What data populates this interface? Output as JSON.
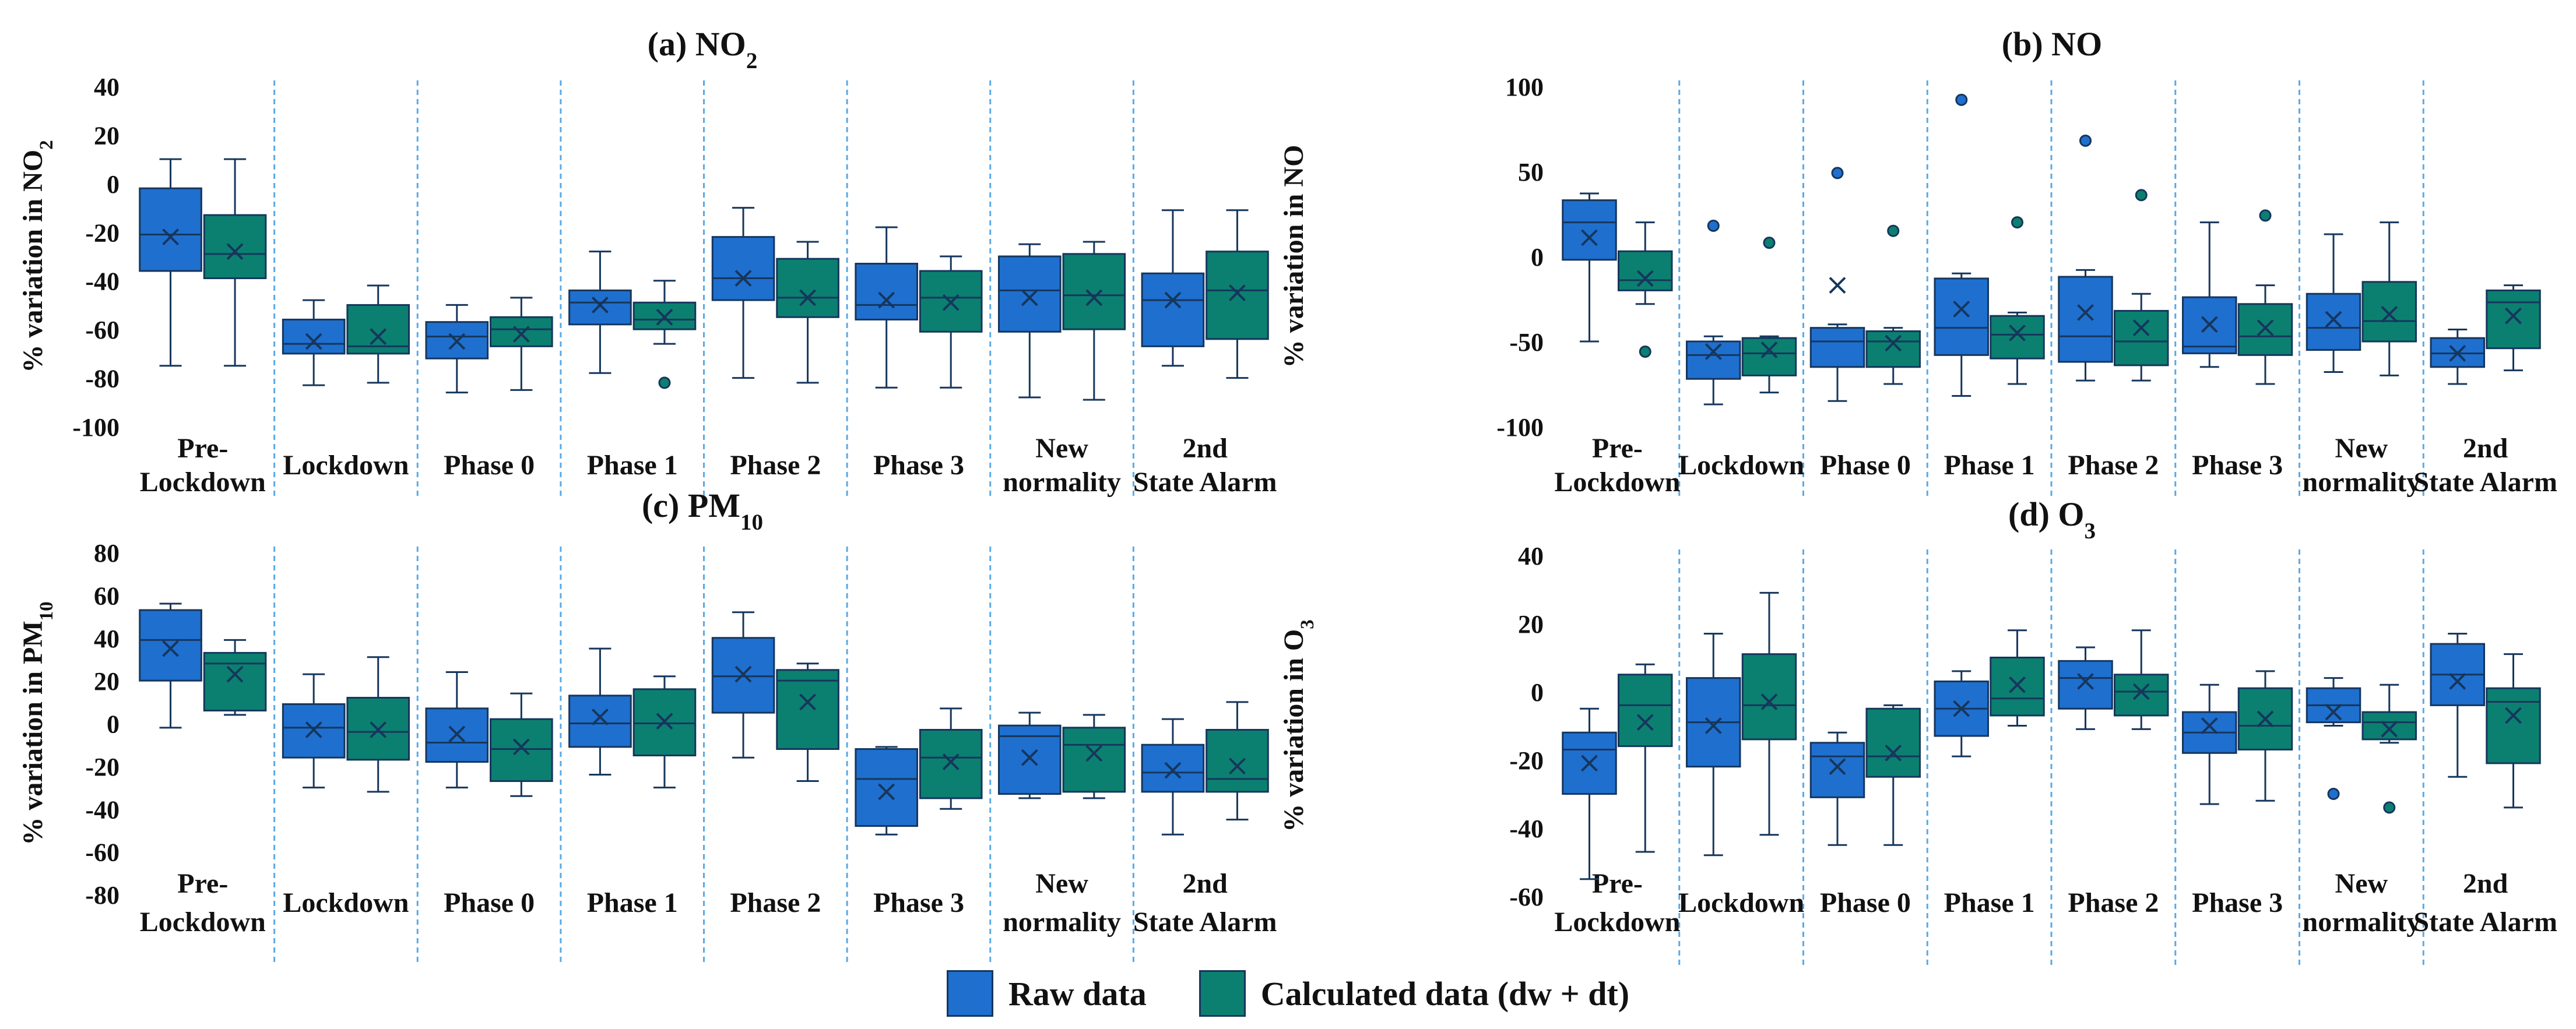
{
  "legend": {
    "raw_label": "Raw data",
    "calc_label": "Calculated data (dw + dt)",
    "raw_color": "#1f6fcf",
    "calc_color": "#0b8070"
  },
  "colors": {
    "raw": "#1f6fcf",
    "calc": "#0b8070",
    "stroke": "#16365c",
    "separator": "#5aa9e6"
  },
  "chart_data": [
    {
      "type": "box",
      "title": "(a) NO",
      "title_sub": "2",
      "ylabel": "% variation in NO",
      "ylabel_sub": "2",
      "ylim": [
        -100,
        40
      ],
      "yticks": [
        40,
        20,
        0,
        -20,
        -40,
        -60,
        -80,
        -100
      ],
      "categories": [
        [
          "Pre-",
          "Lockdown"
        ],
        [
          "Lockdown"
        ],
        [
          "Phase 0"
        ],
        [
          "Phase 1"
        ],
        [
          "Phase 2"
        ],
        [
          "Phase 3"
        ],
        [
          "New",
          "normality"
        ],
        [
          "2nd",
          "State Alarm"
        ]
      ],
      "series": [
        {
          "name": "Raw data",
          "boxes": [
            {
              "min": -75,
              "q1": -36,
              "median": -21,
              "q3": -2,
              "max": 10,
              "mean": -22,
              "outliers": []
            },
            {
              "min": -83,
              "q1": -70,
              "median": -66,
              "q3": -56,
              "max": -48,
              "mean": -65,
              "outliers": []
            },
            {
              "min": -86,
              "q1": -72,
              "median": -63,
              "q3": -57,
              "max": -50,
              "mean": -65,
              "outliers": []
            },
            {
              "min": -78,
              "q1": -58,
              "median": -49,
              "q3": -44,
              "max": -28,
              "mean": -50,
              "outliers": []
            },
            {
              "min": -80,
              "q1": -48,
              "median": -39,
              "q3": -22,
              "max": -10,
              "mean": -39,
              "outliers": []
            },
            {
              "min": -84,
              "q1": -56,
              "median": -50,
              "q3": -33,
              "max": -18,
              "mean": -48,
              "outliers": []
            },
            {
              "min": -88,
              "q1": -61,
              "median": -44,
              "q3": -30,
              "max": -25,
              "mean": -47,
              "outliers": []
            },
            {
              "min": -75,
              "q1": -67,
              "median": -48,
              "q3": -37,
              "max": -11,
              "mean": -48,
              "outliers": []
            }
          ]
        },
        {
          "name": "Calculated data (dw + dt)",
          "boxes": [
            {
              "min": -75,
              "q1": -39,
              "median": -29,
              "q3": -13,
              "max": 10,
              "mean": -28,
              "outliers": []
            },
            {
              "min": -82,
              "q1": -70,
              "median": -67,
              "q3": -50,
              "max": -42,
              "mean": -63,
              "outliers": []
            },
            {
              "min": -85,
              "q1": -67,
              "median": -60,
              "q3": -55,
              "max": -47,
              "mean": -62,
              "outliers": []
            },
            {
              "min": -66,
              "q1": -60,
              "median": -56,
              "q3": -49,
              "max": -40,
              "mean": -55,
              "outliers": [
                -82
              ]
            },
            {
              "min": -82,
              "q1": -55,
              "median": -47,
              "q3": -31,
              "max": -24,
              "mean": -47,
              "outliers": []
            },
            {
              "min": -84,
              "q1": -61,
              "median": -47,
              "q3": -36,
              "max": -30,
              "mean": -49,
              "outliers": []
            },
            {
              "min": -89,
              "q1": -60,
              "median": -46,
              "q3": -29,
              "max": -24,
              "mean": -47,
              "outliers": []
            },
            {
              "min": -80,
              "q1": -64,
              "median": -44,
              "q3": -28,
              "max": -11,
              "mean": -45,
              "outliers": []
            }
          ]
        }
      ]
    },
    {
      "type": "box",
      "title": "(b) NO",
      "title_sub": "",
      "ylabel": "% variation in NO",
      "ylabel_sub": "",
      "ylim": [
        -100,
        100
      ],
      "yticks": [
        100,
        50,
        0,
        -50,
        -100
      ],
      "categories": [
        [
          "Pre-",
          "Lockdown"
        ],
        [
          "Lockdown"
        ],
        [
          "Phase 0"
        ],
        [
          "Phase 1"
        ],
        [
          "Phase 2"
        ],
        [
          "Phase 3"
        ],
        [
          "New",
          "normality"
        ],
        [
          "2nd",
          "State Alarm"
        ]
      ],
      "series": [
        {
          "name": "Raw data",
          "boxes": [
            {
              "min": -50,
              "q1": -2,
              "median": 20,
              "q3": 33,
              "max": 37,
              "mean": 11,
              "outliers": []
            },
            {
              "min": -87,
              "q1": -72,
              "median": -58,
              "q3": -50,
              "max": -47,
              "mean": -56,
              "outliers": [
                18
              ]
            },
            {
              "min": -85,
              "q1": -65,
              "median": -50,
              "q3": -42,
              "max": -40,
              "mean": -17,
              "outliers": [
                49
              ]
            },
            {
              "min": -82,
              "q1": -58,
              "median": -42,
              "q3": -13,
              "max": -10,
              "mean": -31,
              "outliers": [
                92
              ]
            },
            {
              "min": -73,
              "q1": -62,
              "median": -47,
              "q3": -12,
              "max": -8,
              "mean": -33,
              "outliers": [
                68
              ]
            },
            {
              "min": -65,
              "q1": -57,
              "median": -53,
              "q3": -24,
              "max": 20,
              "mean": -40,
              "outliers": []
            },
            {
              "min": -68,
              "q1": -55,
              "median": -42,
              "q3": -22,
              "max": 13,
              "mean": -37,
              "outliers": []
            },
            {
              "min": -75,
              "q1": -65,
              "median": -57,
              "q3": -48,
              "max": -43,
              "mean": -57,
              "outliers": []
            }
          ]
        },
        {
          "name": "Calculated data (dw + dt)",
          "boxes": [
            {
              "min": -28,
              "q1": -20,
              "median": -14,
              "q3": 3,
              "max": 20,
              "mean": -13,
              "outliers": [
                -56
              ]
            },
            {
              "min": -80,
              "q1": -70,
              "median": -57,
              "q3": -48,
              "max": -47,
              "mean": -55,
              "outliers": [
                8
              ]
            },
            {
              "min": -75,
              "q1": -65,
              "median": -50,
              "q3": -44,
              "max": -42,
              "mean": -51,
              "outliers": [
                15
              ]
            },
            {
              "min": -75,
              "q1": -60,
              "median": -46,
              "q3": -35,
              "max": -33,
              "mean": -45,
              "outliers": [
                20
              ]
            },
            {
              "min": -73,
              "q1": -64,
              "median": -50,
              "q3": -32,
              "max": -22,
              "mean": -42,
              "outliers": [
                36
              ]
            },
            {
              "min": -75,
              "q1": -58,
              "median": -47,
              "q3": -28,
              "max": -17,
              "mean": -42,
              "outliers": [
                24
              ]
            },
            {
              "min": -70,
              "q1": -50,
              "median": -38,
              "q3": -15,
              "max": 20,
              "mean": -34,
              "outliers": []
            },
            {
              "min": -67,
              "q1": -54,
              "median": -27,
              "q3": -20,
              "max": -17,
              "mean": -35,
              "outliers": []
            }
          ]
        }
      ]
    },
    {
      "type": "box",
      "title": "(c) PM",
      "title_sub": "10",
      "ylabel": "% variation in PM",
      "ylabel_sub": "10",
      "ylim": [
        -80,
        80
      ],
      "yticks": [
        80,
        60,
        40,
        20,
        0,
        -20,
        -40,
        -60,
        -80
      ],
      "categories": [
        [
          "Pre-",
          "Lockdown"
        ],
        [
          "Lockdown"
        ],
        [
          "Phase 0"
        ],
        [
          "Phase 1"
        ],
        [
          "Phase 2"
        ],
        [
          "Phase 3"
        ],
        [
          "New",
          "normality"
        ],
        [
          "2nd",
          "State Alarm"
        ]
      ],
      "series": [
        {
          "name": "Raw data",
          "boxes": [
            {
              "min": -2,
              "q1": 20,
              "median": 39,
              "q3": 53,
              "max": 56,
              "mean": 35,
              "outliers": []
            },
            {
              "min": -30,
              "q1": -16,
              "median": -2,
              "q3": 9,
              "max": 23,
              "mean": -3,
              "outliers": []
            },
            {
              "min": -30,
              "q1": -18,
              "median": -9,
              "q3": 7,
              "max": 24,
              "mean": -5,
              "outliers": []
            },
            {
              "min": -24,
              "q1": -11,
              "median": 0,
              "q3": 13,
              "max": 35,
              "mean": 3,
              "outliers": []
            },
            {
              "min": -16,
              "q1": 5,
              "median": 22,
              "q3": 40,
              "max": 52,
              "mean": 23,
              "outliers": []
            },
            {
              "min": -52,
              "q1": -48,
              "median": -26,
              "q3": -12,
              "max": -11,
              "mean": -32,
              "outliers": []
            },
            {
              "min": -35,
              "q1": -33,
              "median": -6,
              "q3": -1,
              "max": 5,
              "mean": -16,
              "outliers": []
            },
            {
              "min": -52,
              "q1": -32,
              "median": -23,
              "q3": -10,
              "max": 2,
              "mean": -22,
              "outliers": []
            }
          ]
        },
        {
          "name": "Calculated data (dw + dt)",
          "boxes": [
            {
              "min": 4,
              "q1": 6,
              "median": 28,
              "q3": 33,
              "max": 39,
              "mean": 23,
              "outliers": []
            },
            {
              "min": -32,
              "q1": -17,
              "median": -4,
              "q3": 12,
              "max": 31,
              "mean": -3,
              "outliers": []
            },
            {
              "min": -34,
              "q1": -27,
              "median": -12,
              "q3": 2,
              "max": 14,
              "mean": -11,
              "outliers": []
            },
            {
              "min": -30,
              "q1": -15,
              "median": 0,
              "q3": 16,
              "max": 22,
              "mean": 1,
              "outliers": []
            },
            {
              "min": -27,
              "q1": -12,
              "median": 20,
              "q3": 25,
              "max": 28,
              "mean": 10,
              "outliers": []
            },
            {
              "min": -40,
              "q1": -35,
              "median": -16,
              "q3": -3,
              "max": 7,
              "mean": -18,
              "outliers": []
            },
            {
              "min": -35,
              "q1": -32,
              "median": -10,
              "q3": -2,
              "max": 4,
              "mean": -14,
              "outliers": []
            },
            {
              "min": -45,
              "q1": -32,
              "median": -26,
              "q3": -3,
              "max": 10,
              "mean": -20,
              "outliers": []
            }
          ]
        }
      ]
    },
    {
      "type": "box",
      "title": "(d) O",
      "title_sub": "3",
      "ylabel": "% variation in O",
      "ylabel_sub": "3",
      "ylim": [
        -60,
        40
      ],
      "yticks": [
        40,
        20,
        0,
        -20,
        -40,
        -60
      ],
      "categories": [
        [
          "Pre-",
          "Lockdown"
        ],
        [
          "Lockdown"
        ],
        [
          "Phase 0"
        ],
        [
          "Phase 1"
        ],
        [
          "Phase 2"
        ],
        [
          "Phase 3"
        ],
        [
          "New",
          "normality"
        ],
        [
          "2nd",
          "State Alarm"
        ]
      ],
      "series": [
        {
          "name": "Raw data",
          "boxes": [
            {
              "min": -55,
              "q1": -30,
              "median": -17,
              "q3": -12,
              "max": -5,
              "mean": -21,
              "outliers": []
            },
            {
              "min": -48,
              "q1": -22,
              "median": -9,
              "q3": 4,
              "max": 17,
              "mean": -10,
              "outliers": []
            },
            {
              "min": -45,
              "q1": -31,
              "median": -19,
              "q3": -15,
              "max": -12,
              "mean": -22,
              "outliers": []
            },
            {
              "min": -19,
              "q1": -13,
              "median": -5,
              "q3": 3,
              "max": 6,
              "mean": -5,
              "outliers": []
            },
            {
              "min": -11,
              "q1": -5,
              "median": 4,
              "q3": 9,
              "max": 13,
              "mean": 3,
              "outliers": []
            },
            {
              "min": -33,
              "q1": -18,
              "median": -12,
              "q3": -6,
              "max": 2,
              "mean": -10,
              "outliers": []
            },
            {
              "min": -10,
              "q1": -9,
              "median": -4,
              "q3": 1,
              "max": 4,
              "mean": -6,
              "outliers": [
                -30
              ]
            },
            {
              "min": -25,
              "q1": -4,
              "median": 5,
              "q3": 14,
              "max": 17,
              "mean": 3,
              "outliers": []
            }
          ]
        },
        {
          "name": "Calculated data (dw + dt)",
          "boxes": [
            {
              "min": -47,
              "q1": -16,
              "median": -4,
              "q3": 5,
              "max": 8,
              "mean": -9,
              "outliers": []
            },
            {
              "min": -42,
              "q1": -14,
              "median": -4,
              "q3": 11,
              "max": 29,
              "mean": -3,
              "outliers": []
            },
            {
              "min": -45,
              "q1": -25,
              "median": -19,
              "q3": -5,
              "max": -4,
              "mean": -18,
              "outliers": []
            },
            {
              "min": -10,
              "q1": -7,
              "median": -2,
              "q3": 10,
              "max": 18,
              "mean": 2,
              "outliers": []
            },
            {
              "min": -11,
              "q1": -7,
              "median": 0,
              "q3": 5,
              "max": 18,
              "mean": 0,
              "outliers": []
            },
            {
              "min": -32,
              "q1": -17,
              "median": -10,
              "q3": 1,
              "max": 6,
              "mean": -8,
              "outliers": []
            },
            {
              "min": -15,
              "q1": -14,
              "median": -9,
              "q3": -6,
              "max": 2,
              "mean": -11,
              "outliers": [
                -34
              ]
            },
            {
              "min": -34,
              "q1": -21,
              "median": -3,
              "q3": 1,
              "max": 11,
              "mean": -7,
              "outliers": []
            }
          ]
        }
      ]
    }
  ]
}
